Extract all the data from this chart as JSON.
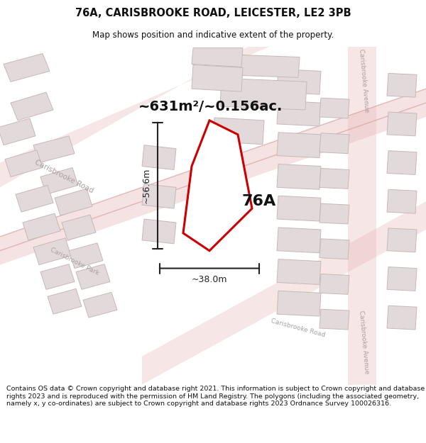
{
  "title_line1": "76A, CARISBROOKE ROAD, LEICESTER, LE2 3PB",
  "title_line2": "Map shows position and indicative extent of the property.",
  "area_label": "~631m²/~0.156ac.",
  "property_label": "76A",
  "dim_height": "~56.6m",
  "dim_width": "~38.0m",
  "footer_text": "Contains OS data © Crown copyright and database right 2021. This information is subject to Crown copyright and database rights 2023 and is reproduced with the permission of HM Land Registry. The polygons (including the associated geometry, namely x, y co-ordinates) are subject to Crown copyright and database rights 2023 Ordnance Survey 100026316.",
  "map_bg": "#f7f2f2",
  "road_color": "#e8b8b8",
  "road_line_color": "#daa0a0",
  "building_fill": "#e2dada",
  "building_edge": "#c8b8b8",
  "property_fill": "#ffffff",
  "property_edge": "#cc0000",
  "street_label_color": "#aaa0a0",
  "dim_color": "#222222",
  "title_color": "#111111",
  "area_label_color": "#111111"
}
